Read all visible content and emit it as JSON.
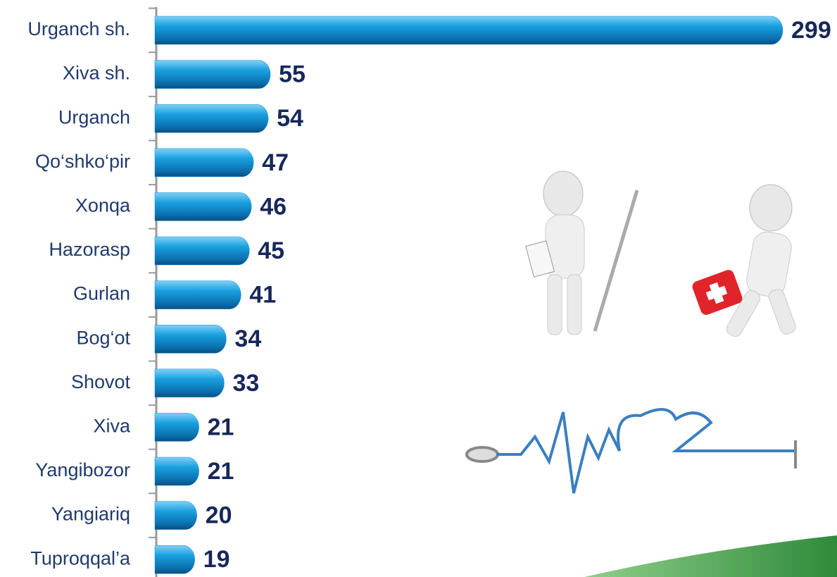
{
  "chart_data": {
    "type": "bar",
    "orientation": "horizontal",
    "categories": [
      "Urganch sh.",
      "Xiva sh.",
      "Urganch",
      "Qo‘shko‘pir",
      "Xonqa",
      "Hazorasp",
      "Gurlan",
      "Bog‘ot",
      "Shovot",
      "Xiva",
      "Yangibozor",
      "Yangiariq",
      "Tuproqqal’a"
    ],
    "values": [
      299,
      55,
      54,
      47,
      46,
      45,
      41,
      34,
      33,
      21,
      21,
      20,
      19
    ],
    "color": "#1690d2"
  }
}
